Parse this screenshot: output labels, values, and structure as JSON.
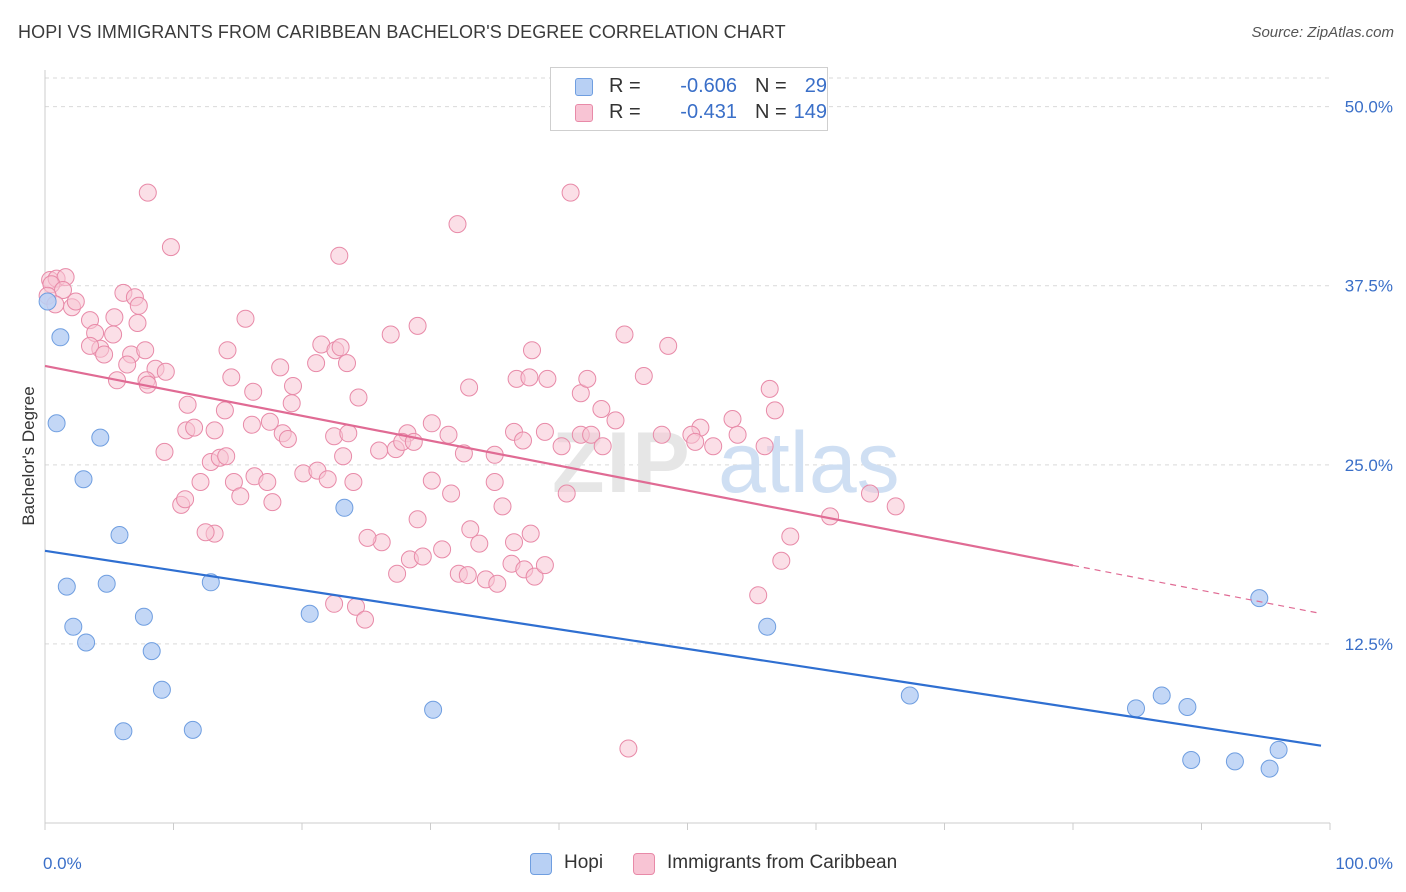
{
  "header": {
    "title": "HOPI VS IMMIGRANTS FROM CARIBBEAN BACHELOR'S DEGREE CORRELATION CHART",
    "source": "Source: ZipAtlas.com"
  },
  "watermark": {
    "part1": "ZIP",
    "part2": "atlas"
  },
  "legend": {
    "rows": [
      {
        "r_label": "R =",
        "r_value": "-0.606",
        "n_label": "N =",
        "n_value": "29"
      },
      {
        "r_label": "R =",
        "r_value": "-0.431",
        "n_label": "N =",
        "n_value": "149"
      }
    ]
  },
  "colors": {
    "hopi_fill": "#b8d0f4",
    "hopi_stroke": "#6f9ee0",
    "hopi_line": "#2f6fd1",
    "carib_fill": "#f8c4d4",
    "carib_stroke": "#e88aa8",
    "carib_line": "#e06b94",
    "tick_label": "#3a6fc8",
    "grid": "#d9d9d9"
  },
  "chart_data": {
    "type": "scatter",
    "title": "HOPI VS IMMIGRANTS FROM CARIBBEAN BACHELOR'S DEGREE CORRELATION CHART",
    "xlabel": "",
    "ylabel": "Bachelor's Degree",
    "xlim": [
      0,
      100
    ],
    "ylim": [
      0,
      52
    ],
    "x_tick_labels": [
      "0.0%",
      "100.0%"
    ],
    "y_ticks": [
      12.5,
      25.0,
      37.5,
      50.0
    ],
    "y_tick_labels": [
      "12.5%",
      "25.0%",
      "37.5%",
      "50.0%"
    ],
    "grid": true,
    "legend_position": "top-center",
    "series": [
      {
        "name": "Hopi",
        "color": "#b8d0f4",
        "trend": {
          "x": [
            0,
            100
          ],
          "y": [
            19.0,
            5.3
          ],
          "dashed_from": null
        },
        "points": [
          [
            0.2,
            36.4
          ],
          [
            1.2,
            33.9
          ],
          [
            0.9,
            27.9
          ],
          [
            4.3,
            26.9
          ],
          [
            3.0,
            24.0
          ],
          [
            5.8,
            20.1
          ],
          [
            1.7,
            16.5
          ],
          [
            4.8,
            16.7
          ],
          [
            12.9,
            16.8
          ],
          [
            2.2,
            13.7
          ],
          [
            3.2,
            12.6
          ],
          [
            7.7,
            14.4
          ],
          [
            8.3,
            12.0
          ],
          [
            20.6,
            14.6
          ],
          [
            9.1,
            9.3
          ],
          [
            6.1,
            6.4
          ],
          [
            11.5,
            6.5
          ],
          [
            23.3,
            22.0
          ],
          [
            30.2,
            7.9
          ],
          [
            56.2,
            13.7
          ],
          [
            67.3,
            8.9
          ],
          [
            84.9,
            8.0
          ],
          [
            86.9,
            8.9
          ],
          [
            88.9,
            8.1
          ],
          [
            94.5,
            15.7
          ],
          [
            89.2,
            4.4
          ],
          [
            92.6,
            4.3
          ],
          [
            95.3,
            3.8
          ],
          [
            96.0,
            5.1
          ]
        ]
      },
      {
        "name": "Immigrants from Caribbean",
        "color": "#f8c4d4",
        "trend": {
          "x": [
            0,
            100
          ],
          "y": [
            31.9,
            14.5
          ],
          "dashed_from": 80
        },
        "points": [
          [
            0.4,
            37.9
          ],
          [
            0.9,
            38.0
          ],
          [
            1.6,
            38.1
          ],
          [
            0.5,
            37.6
          ],
          [
            1.4,
            37.2
          ],
          [
            0.2,
            36.8
          ],
          [
            2.1,
            36.0
          ],
          [
            2.4,
            36.4
          ],
          [
            0.8,
            36.2
          ],
          [
            6.1,
            37.0
          ],
          [
            8.0,
            44.0
          ],
          [
            9.8,
            40.2
          ],
          [
            7.0,
            36.7
          ],
          [
            7.3,
            36.1
          ],
          [
            3.5,
            35.1
          ],
          [
            5.4,
            35.3
          ],
          [
            3.9,
            34.2
          ],
          [
            7.2,
            34.9
          ],
          [
            5.3,
            34.1
          ],
          [
            4.3,
            33.1
          ],
          [
            3.5,
            33.3
          ],
          [
            6.7,
            32.7
          ],
          [
            7.8,
            33.0
          ],
          [
            4.6,
            32.7
          ],
          [
            6.4,
            32.0
          ],
          [
            8.6,
            31.7
          ],
          [
            9.4,
            31.5
          ],
          [
            7.9,
            30.9
          ],
          [
            5.6,
            30.9
          ],
          [
            8.0,
            30.6
          ],
          [
            14.2,
            33.0
          ],
          [
            15.6,
            35.2
          ],
          [
            14.5,
            31.1
          ],
          [
            18.3,
            31.8
          ],
          [
            21.1,
            32.1
          ],
          [
            19.3,
            30.5
          ],
          [
            16.2,
            30.1
          ],
          [
            21.5,
            33.4
          ],
          [
            22.6,
            33.0
          ],
          [
            23.5,
            32.1
          ],
          [
            23.0,
            33.2
          ],
          [
            24.4,
            29.7
          ],
          [
            26.9,
            34.1
          ],
          [
            29.0,
            34.7
          ],
          [
            22.9,
            39.6
          ],
          [
            32.1,
            41.8
          ],
          [
            40.9,
            44.0
          ],
          [
            33.0,
            30.4
          ],
          [
            36.7,
            31.0
          ],
          [
            37.7,
            31.1
          ],
          [
            37.9,
            33.0
          ],
          [
            39.1,
            31.0
          ],
          [
            41.7,
            30.0
          ],
          [
            42.2,
            31.0
          ],
          [
            43.3,
            28.9
          ],
          [
            45.1,
            34.1
          ],
          [
            46.6,
            31.2
          ],
          [
            48.5,
            33.3
          ],
          [
            51.0,
            27.6
          ],
          [
            53.5,
            28.2
          ],
          [
            56.4,
            30.3
          ],
          [
            56.8,
            28.8
          ],
          [
            13.2,
            27.4
          ],
          [
            17.5,
            28.0
          ],
          [
            18.5,
            27.2
          ],
          [
            19.2,
            29.3
          ],
          [
            16.1,
            27.8
          ],
          [
            14.0,
            28.8
          ],
          [
            11.0,
            27.4
          ],
          [
            11.6,
            27.6
          ],
          [
            11.1,
            29.2
          ],
          [
            9.3,
            25.9
          ],
          [
            12.9,
            25.2
          ],
          [
            13.6,
            25.5
          ],
          [
            14.1,
            25.6
          ],
          [
            14.7,
            23.8
          ],
          [
            15.2,
            22.8
          ],
          [
            16.3,
            24.2
          ],
          [
            17.3,
            23.8
          ],
          [
            17.7,
            22.4
          ],
          [
            12.1,
            23.8
          ],
          [
            10.6,
            22.2
          ],
          [
            10.9,
            22.6
          ],
          [
            18.9,
            26.8
          ],
          [
            20.1,
            24.4
          ],
          [
            21.2,
            24.6
          ],
          [
            22.0,
            24.0
          ],
          [
            22.5,
            27.0
          ],
          [
            23.6,
            27.2
          ],
          [
            23.2,
            25.6
          ],
          [
            24.0,
            23.8
          ],
          [
            26.0,
            26.0
          ],
          [
            27.3,
            26.1
          ],
          [
            28.2,
            27.2
          ],
          [
            27.8,
            26.6
          ],
          [
            28.7,
            26.6
          ],
          [
            30.1,
            27.9
          ],
          [
            31.4,
            27.1
          ],
          [
            32.6,
            25.8
          ],
          [
            35.0,
            25.7
          ],
          [
            36.5,
            27.3
          ],
          [
            37.2,
            26.7
          ],
          [
            38.9,
            27.3
          ],
          [
            40.2,
            26.3
          ],
          [
            41.7,
            27.1
          ],
          [
            42.5,
            27.1
          ],
          [
            43.4,
            26.3
          ],
          [
            44.4,
            28.1
          ],
          [
            48.0,
            27.1
          ],
          [
            50.3,
            27.1
          ],
          [
            50.6,
            26.6
          ],
          [
            52.0,
            26.3
          ],
          [
            53.9,
            27.1
          ],
          [
            56.0,
            26.3
          ],
          [
            40.6,
            23.0
          ],
          [
            33.1,
            20.5
          ],
          [
            29.0,
            21.2
          ],
          [
            30.1,
            23.9
          ],
          [
            31.6,
            23.0
          ],
          [
            35.0,
            23.8
          ],
          [
            35.6,
            22.1
          ],
          [
            33.8,
            19.5
          ],
          [
            36.3,
            18.1
          ],
          [
            37.8,
            20.2
          ],
          [
            36.5,
            19.6
          ],
          [
            37.3,
            17.7
          ],
          [
            38.1,
            17.2
          ],
          [
            38.9,
            18.0
          ],
          [
            26.2,
            19.6
          ],
          [
            25.1,
            19.9
          ],
          [
            27.4,
            17.4
          ],
          [
            28.4,
            18.4
          ],
          [
            29.4,
            18.6
          ],
          [
            30.9,
            19.1
          ],
          [
            32.2,
            17.4
          ],
          [
            32.9,
            17.3
          ],
          [
            34.3,
            17.0
          ],
          [
            35.2,
            16.7
          ],
          [
            13.2,
            20.2
          ],
          [
            12.5,
            20.3
          ],
          [
            22.5,
            15.3
          ],
          [
            24.2,
            15.1
          ],
          [
            24.9,
            14.2
          ],
          [
            45.4,
            5.2
          ],
          [
            57.3,
            18.3
          ],
          [
            55.5,
            15.9
          ],
          [
            58.0,
            20.0
          ],
          [
            61.1,
            21.4
          ],
          [
            64.2,
            23.0
          ],
          [
            66.2,
            22.1
          ]
        ]
      }
    ]
  },
  "bottom_legend": {
    "items": [
      "Hopi",
      "Immigrants from Caribbean"
    ]
  }
}
